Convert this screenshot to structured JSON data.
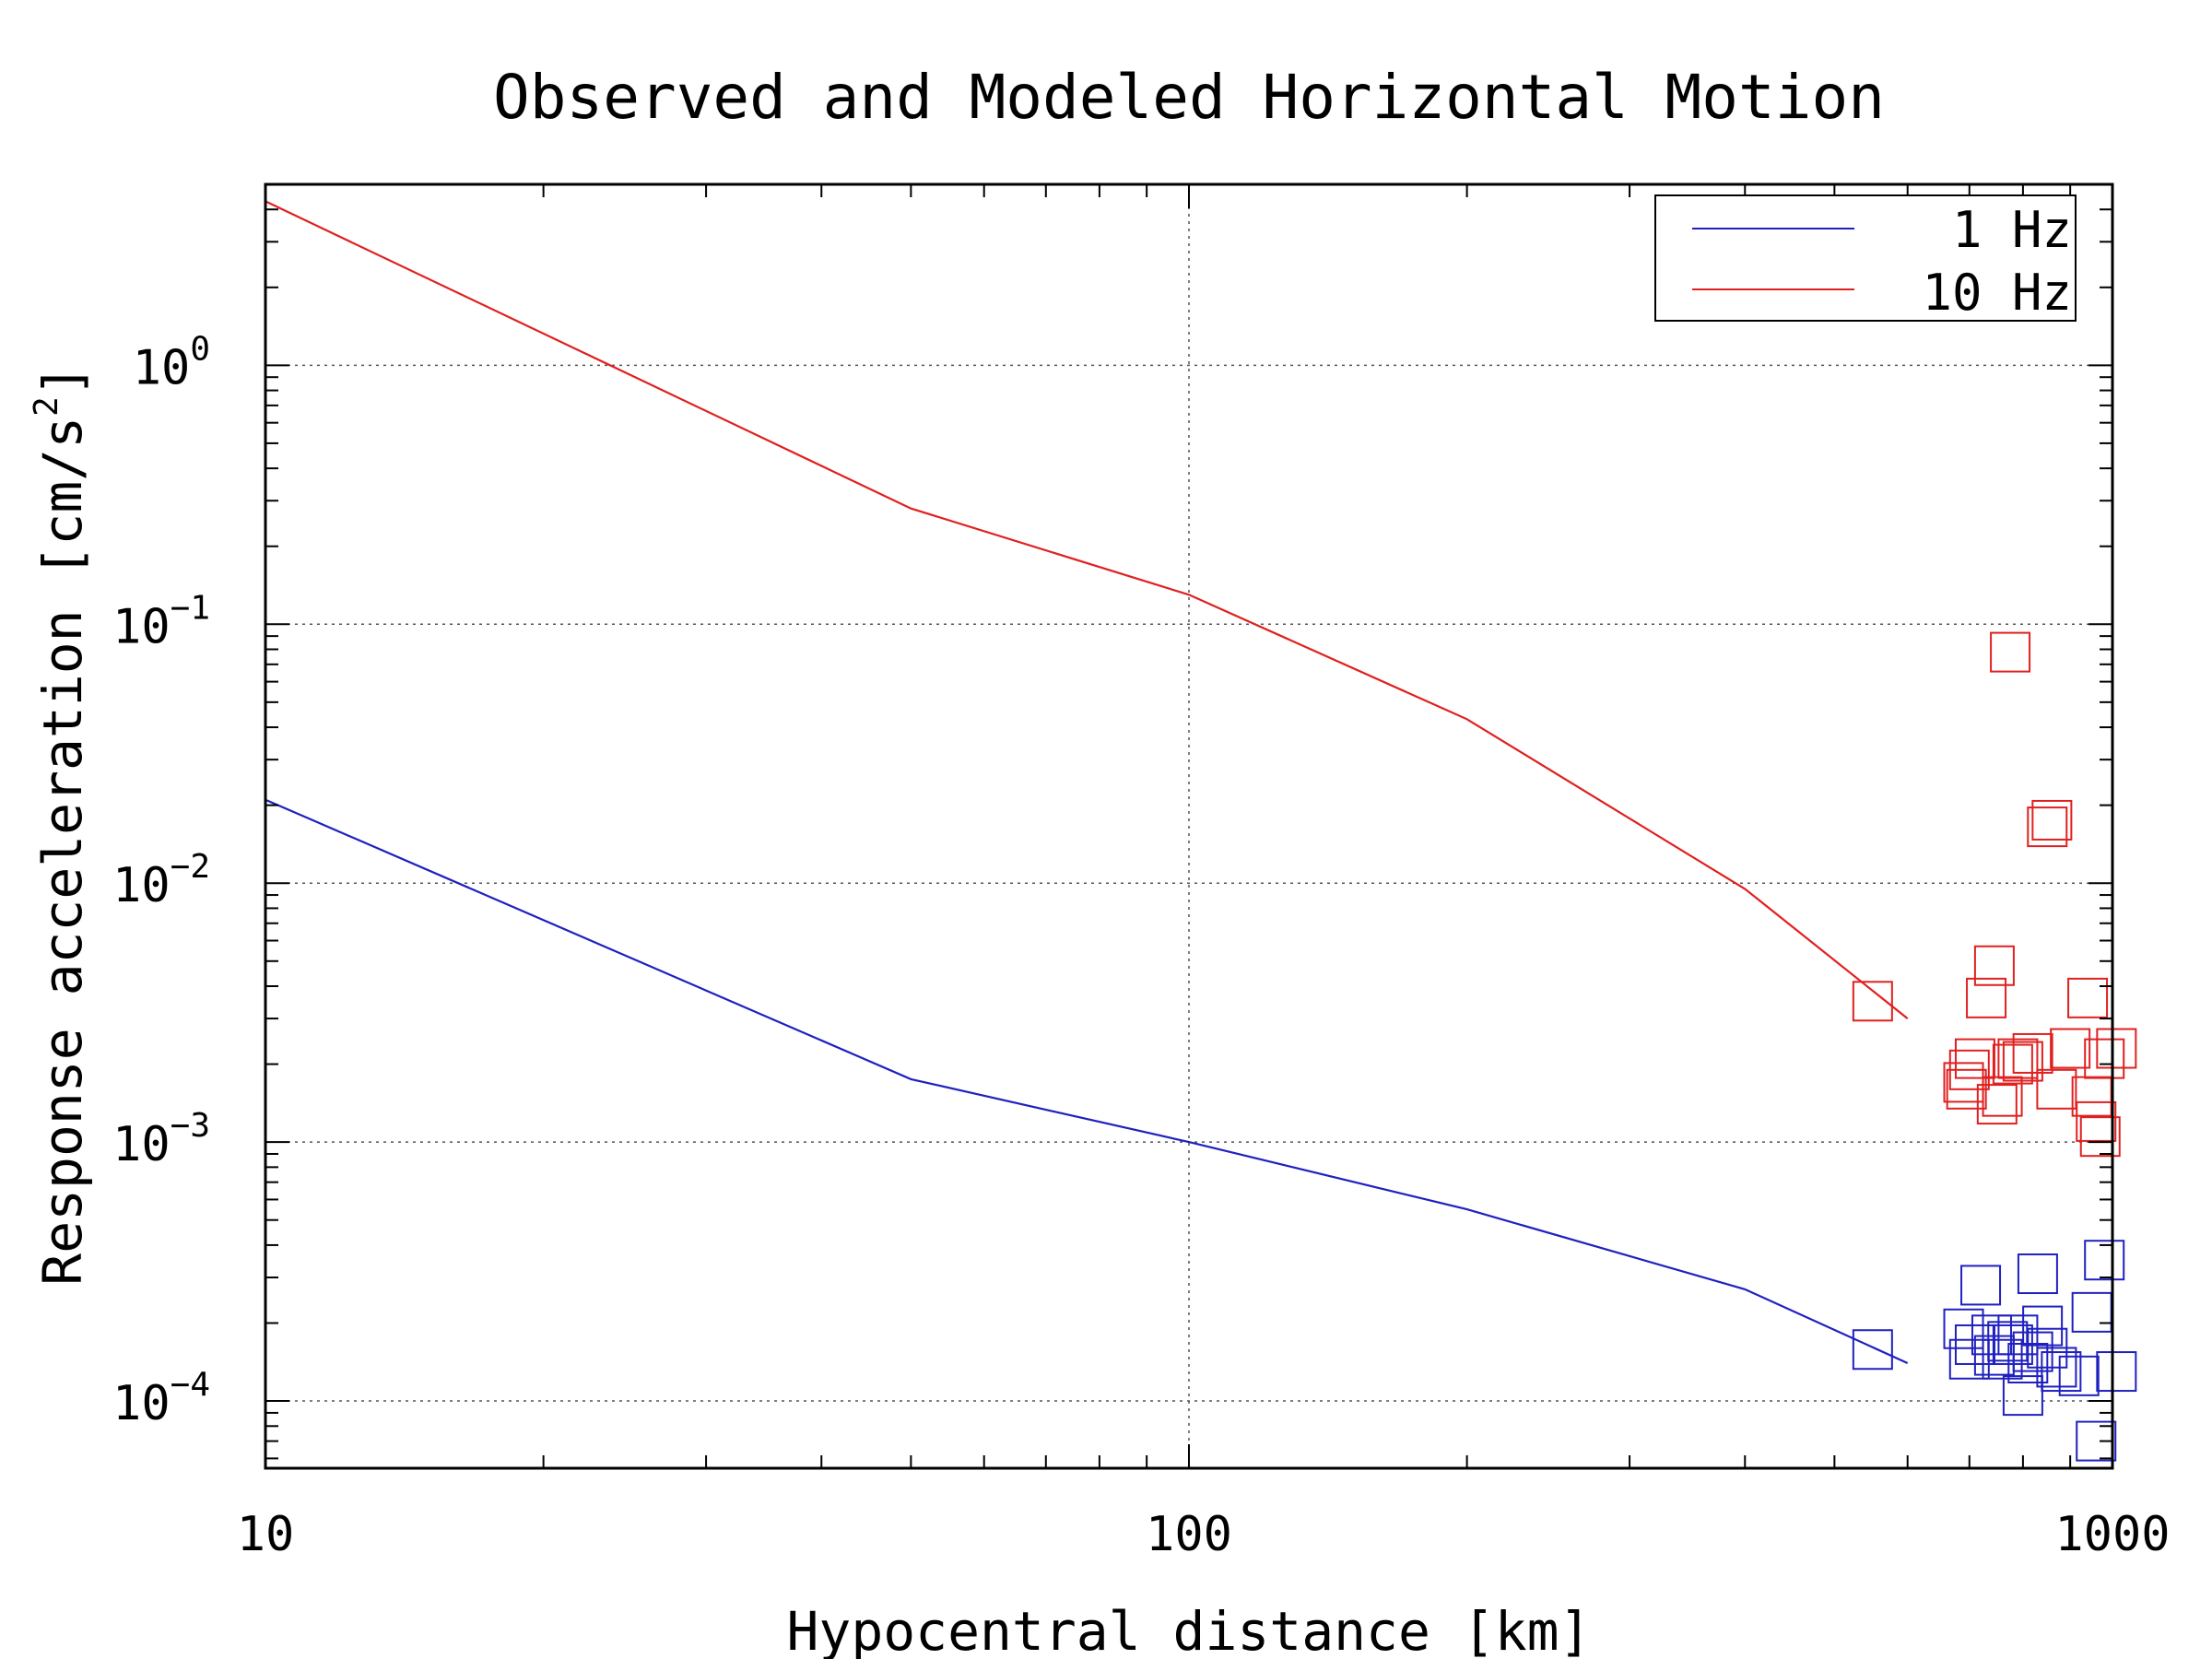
{
  "chart_data": {
    "type": "line",
    "title": "Observed and Modeled Horizontal Motion",
    "xlabel": "Hypocentral distance [km]",
    "ylabel_base": "Response acceleration [cm/s",
    "ylabel_sup": "2",
    "ylabel_end": "]",
    "xscale": "log",
    "yscale": "log",
    "xlim": [
      10,
      1000
    ],
    "ylim": [
      5.5e-05,
      5
    ],
    "x_ticks": [
      {
        "value": 10,
        "label": "10"
      },
      {
        "value": 100,
        "label": "100"
      },
      {
        "value": 1000,
        "label": "1000"
      }
    ],
    "y_ticks": [
      {
        "value": 0.0001,
        "base": "10",
        "exp": "−4"
      },
      {
        "value": 0.001,
        "base": "10",
        "exp": "−3"
      },
      {
        "value": 0.01,
        "base": "10",
        "exp": "−2"
      },
      {
        "value": 0.1,
        "base": "10",
        "exp": "−1"
      },
      {
        "value": 1,
        "base": "10",
        "exp": "0"
      }
    ],
    "grid": true,
    "legend_position": "top-right",
    "series": [
      {
        "name": "1 Hz",
        "color": "#2020c0",
        "line": [
          [
            10,
            0.021
          ],
          [
            50,
            0.00175
          ],
          [
            100,
            0.001
          ],
          [
            200,
            0.00055
          ],
          [
            400,
            0.00027
          ],
          [
            600,
            0.00014
          ]
        ],
        "observed": [
          [
            550,
            0.000158
          ],
          [
            690,
            0.00019
          ],
          [
            700,
            0.000145
          ],
          [
            710,
            0.000165
          ],
          [
            720,
            0.00028
          ],
          [
            740,
            0.00018
          ],
          [
            745,
            0.00015
          ],
          [
            760,
            0.000145
          ],
          [
            770,
            0.00017
          ],
          [
            780,
            0.000165
          ],
          [
            790,
            0.00018
          ],
          [
            800,
            0.000105
          ],
          [
            810,
            0.00014
          ],
          [
            820,
            0.000155
          ],
          [
            830,
            0.00031
          ],
          [
            840,
            0.000195
          ],
          [
            850,
            0.00016
          ],
          [
            870,
            0.000135
          ],
          [
            880,
            0.00013
          ],
          [
            920,
            0.000125
          ],
          [
            950,
            0.00022
          ],
          [
            960,
            7e-05
          ],
          [
            980,
            0.00035
          ],
          [
            1010,
            0.00013
          ]
        ]
      },
      {
        "name": "10 Hz",
        "color": "#e02020",
        "line": [
          [
            10,
            4.3
          ],
          [
            50,
            0.28
          ],
          [
            100,
            0.13
          ],
          [
            200,
            0.043
          ],
          [
            400,
            0.0095
          ],
          [
            600,
            0.003
          ]
        ],
        "observed": [
          [
            550,
            0.0035
          ],
          [
            690,
            0.0017
          ],
          [
            695,
            0.0016
          ],
          [
            700,
            0.0019
          ],
          [
            710,
            0.0021
          ],
          [
            730,
            0.0036
          ],
          [
            745,
            0.0048
          ],
          [
            750,
            0.0014
          ],
          [
            760,
            0.0015
          ],
          [
            775,
            0.078
          ],
          [
            780,
            0.002
          ],
          [
            790,
            0.0021
          ],
          [
            800,
            0.00205
          ],
          [
            820,
            0.0022
          ],
          [
            850,
            0.0165
          ],
          [
            860,
            0.0175
          ],
          [
            870,
            0.0016
          ],
          [
            900,
            0.0023
          ],
          [
            940,
            0.0036
          ],
          [
            950,
            0.0015
          ],
          [
            960,
            0.0012
          ],
          [
            970,
            0.00105
          ],
          [
            980,
            0.0021
          ],
          [
            1010,
            0.0023
          ]
        ]
      }
    ]
  }
}
